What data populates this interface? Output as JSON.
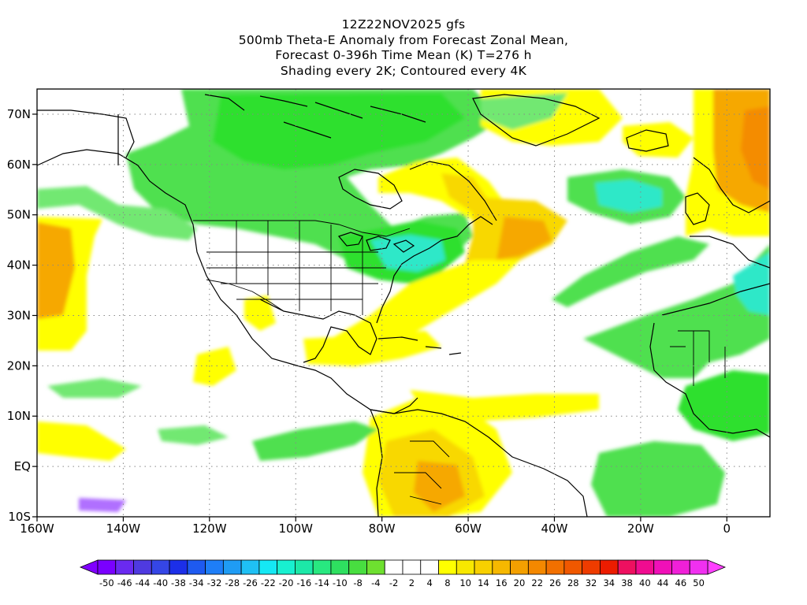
{
  "title": {
    "lines": [
      "12Z22NOV2025 gfs",
      "500mb Theta-E Anomaly from Forecast Zonal Mean,",
      "Forecast 0-396h Time Mean (K) T=276 h",
      "Shading every 2K; Contoured every 4K"
    ]
  },
  "axes": {
    "lat_labels": [
      "70N",
      "60N",
      "50N",
      "40N",
      "30N",
      "20N",
      "10N",
      "EQ",
      "10S"
    ],
    "lat_values": [
      70,
      60,
      50,
      40,
      30,
      20,
      10,
      0,
      -10
    ],
    "lon_labels": [
      "160W",
      "140W",
      "120W",
      "100W",
      "80W",
      "60W",
      "40W",
      "20W",
      "0"
    ],
    "lon_values": [
      -160,
      -140,
      -120,
      -100,
      -80,
      -60,
      -40,
      -20,
      0
    ],
    "lon_range": [
      -160,
      10
    ],
    "lat_range": [
      -10,
      75
    ],
    "grid": "dotted"
  },
  "colorbar": {
    "labels": [
      "-50",
      "-46",
      "-44",
      "-40",
      "-38",
      "-34",
      "-32",
      "-28",
      "-26",
      "-22",
      "-20",
      "-16",
      "-14",
      "-10",
      "-8",
      "-4",
      "-2",
      "2",
      "4",
      "8",
      "10",
      "14",
      "16",
      "20",
      "22",
      "26",
      "28",
      "32",
      "34",
      "38",
      "40",
      "44",
      "46",
      "50"
    ],
    "colors": [
      "#7a00ff",
      "#6a2af0",
      "#4f3ae0",
      "#3546e6",
      "#1c2fe8",
      "#1e5af0",
      "#1e7ef8",
      "#1f9cf4",
      "#1fc0f4",
      "#15e8f4",
      "#18f0d0",
      "#1ce8a8",
      "#28e880",
      "#2ee060",
      "#48de40",
      "#6ee030",
      "#ffffff",
      "#ffffff",
      "#ffffff",
      "#ffff00",
      "#f8e800",
      "#f8d000",
      "#f6b800",
      "#f4a000",
      "#f48800",
      "#f27000",
      "#f05800",
      "#ee3c00",
      "#ec1c00",
      "#ee1060",
      "#f00c90",
      "#f010b8",
      "#f020d8",
      "#f030f0"
    ],
    "left_arrow_color": "#8000ff",
    "right_arrow_color": "#ff40ff"
  },
  "palette": {
    "strong_green": "#2fe02f",
    "green": "#50e050",
    "light_green": "#72e872",
    "cyan": "#2de8c8",
    "yellow": "#ffff00",
    "gold": "#f8d800",
    "orange": "#f6a800",
    "deep_orange": "#f48c00"
  }
}
